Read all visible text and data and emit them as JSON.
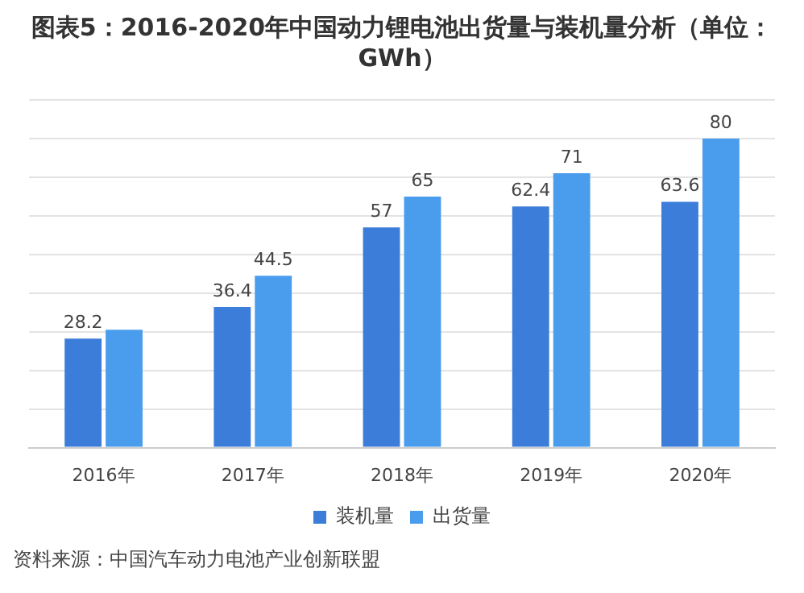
{
  "chart_data": {
    "type": "bar",
    "title": "图表5：2016-2020年中国动力锂电池出货量与装机量分析（单位：GWh）",
    "categories": [
      "2016年",
      "2017年",
      "2018年",
      "2019年",
      "2020年"
    ],
    "series": [
      {
        "name": "装机量",
        "color": "#3b7dd8",
        "values": [
          28.2,
          36.4,
          57,
          62.4,
          63.6
        ],
        "value_labels": [
          "28.2",
          "36.4",
          "57",
          "62.4",
          "63.6"
        ]
      },
      {
        "name": "出货量",
        "color": "#4a9cec",
        "values": [
          30.5,
          44.5,
          65,
          71,
          80
        ],
        "value_labels": [
          null,
          "44.5",
          "65",
          "71",
          "80"
        ]
      }
    ],
    "ylim": [
      0,
      90
    ],
    "yticks": [
      {
        "value": 0,
        "label": null
      },
      {
        "value": 10,
        "label": null
      },
      {
        "value": 20,
        "label": null
      },
      {
        "value": 30,
        "label": null
      },
      {
        "value": 40,
        "label": null
      },
      {
        "value": 50,
        "label": null
      },
      {
        "value": 60,
        "label": null
      },
      {
        "value": 70,
        "label": null
      },
      {
        "value": 80,
        "label": null
      },
      {
        "value": 90,
        "label": null
      }
    ],
    "grid": "y",
    "legend": "bottom",
    "tick_labels": "x",
    "annotations": [
      "资料来源：中国汽车动力电池产业创新联盟"
    ]
  }
}
